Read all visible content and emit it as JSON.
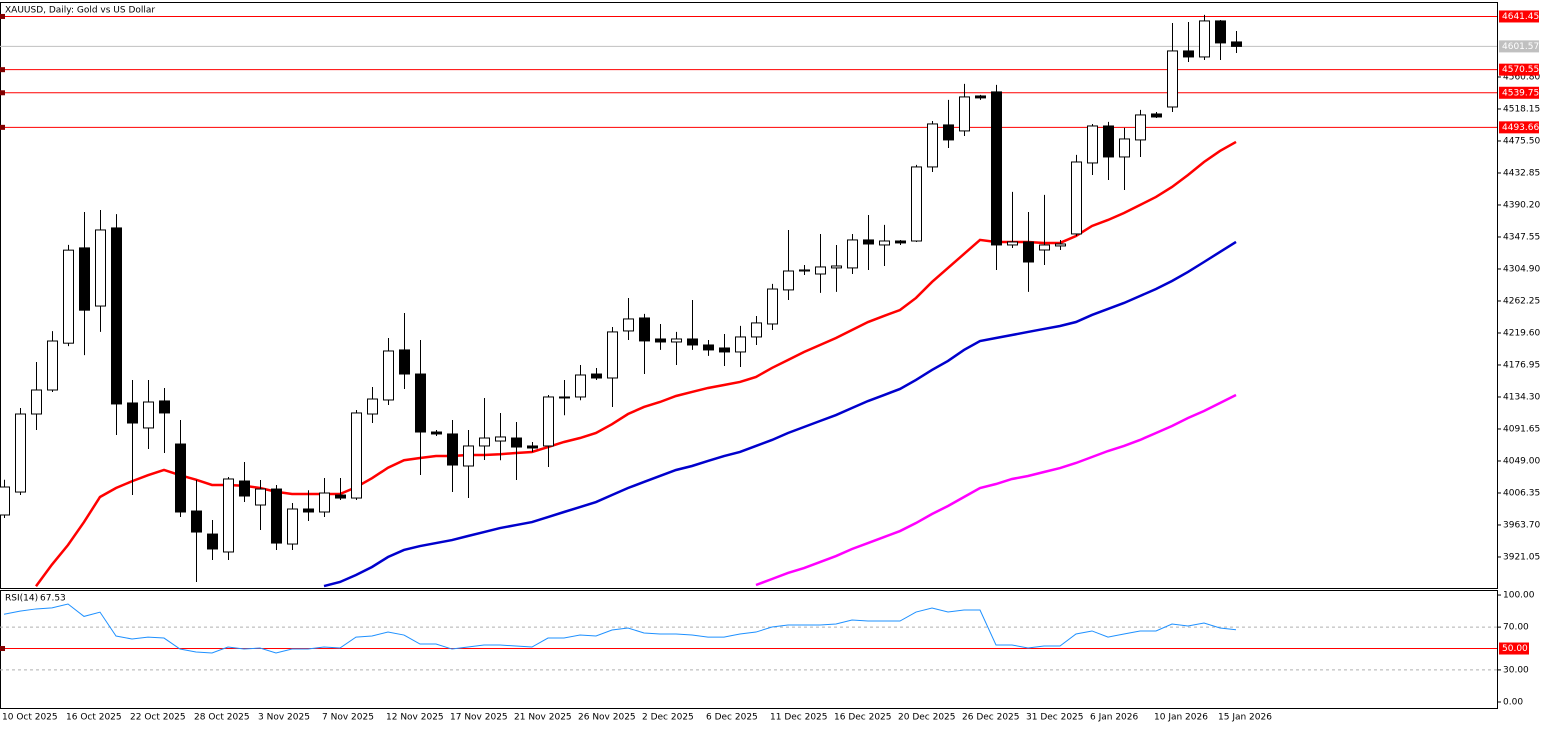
{
  "chart_data": [
    {
      "type": "candlestick",
      "title": "XAUUSD, Daily:  Gold vs US Dollar",
      "categories": [
        "10 Oct 2025",
        null,
        null,
        null,
        "16 Oct 2025",
        null,
        null,
        null,
        "22 Oct 2025",
        null,
        null,
        null,
        "28 Oct 2025",
        null,
        null,
        null,
        "3 Nov 2025",
        null,
        null,
        null,
        "7 Nov 2025",
        null,
        null,
        null,
        "12 Nov 2025",
        null,
        null,
        null,
        "17 Nov 2025",
        null,
        null,
        null,
        "21 Nov 2025",
        null,
        null,
        null,
        "26 Nov 2025",
        null,
        null,
        null,
        "2 Dec 2025",
        null,
        null,
        null,
        "6 Dec 2025",
        null,
        null,
        null,
        "11 Dec 2025",
        null,
        null,
        null,
        "16 Dec 2025",
        null,
        null,
        null,
        "20 Dec 2025",
        null,
        null,
        null,
        "26 Dec 2025",
        null,
        null,
        null,
        "31 Dec 2025",
        null,
        null,
        null,
        "6 Jan 2026",
        null,
        null,
        null,
        "10 Jan 2026",
        null,
        null,
        null,
        "15 Jan 2026",
        null
      ],
      "open": [
        3977,
        4007.6,
        4111.6,
        4143.6,
        4206,
        4333,
        4255.5,
        4359.6,
        4126.3,
        4093,
        4129,
        4071.6,
        3982.3,
        3951.6,
        3927.7,
        4022.3,
        3990.3,
        4011.6,
        3938.3,
        3985,
        3981,
        4003.6,
        3999.6,
        4111.6,
        4130.3,
        4197,
        4164.9,
        4087.6,
        4085,
        4042.3,
        4069,
        4075.6,
        4079.6,
        4069,
        4069,
        4134.3,
        4134.3,
        4164.9,
        4159.6,
        4222.3,
        4239.6,
        4211.6,
        4207.6,
        4211.6,
        4203.6,
        4199.6,
        4194.3,
        4214.3,
        4231.6,
        4277,
        4302.2,
        4298.2,
        4306.3,
        4306.3,
        4343.6,
        4336.9,
        4342.2,
        4342.2,
        4440.9,
        4496.9,
        4488.9,
        4535.5,
        4540.9,
        4336.9,
        4340.9,
        4330.2,
        4335.6,
        4351.6,
        4446.2,
        4495.5,
        4454.2,
        4476.9,
        4511.5,
        4520.8,
        4595.5,
        4587.5,
        4635.5,
        4607.5
      ],
      "high": [
        4024,
        4119.6,
        4180.9,
        4222,
        4337,
        4380.9,
        4383.5,
        4378,
        4156.9,
        4156.9,
        4146.3,
        4103.6,
        4023.6,
        3970.3,
        4027.6,
        4047.6,
        4023.6,
        4017,
        3993,
        4010,
        4026.3,
        4026.3,
        4117,
        4147.6,
        4212.9,
        4246.3,
        4210.3,
        4090.3,
        4103.6,
        4090.3,
        4133,
        4113,
        4101,
        4074.3,
        4137,
        4156.9,
        4177,
        4172.9,
        4227.6,
        4266.3,
        4245,
        4231.6,
        4221,
        4263.6,
        4210.3,
        4218.3,
        4229,
        4242.3,
        4285,
        4356.9,
        4310.2,
        4351.6,
        4336.9,
        4351.6,
        4376.9,
        4363.6,
        4343.6,
        4443.6,
        4502.2,
        4530.2,
        4551.6,
        4536.9,
        4550.2,
        4407.6,
        4380.9,
        4403.6,
        4343.6,
        4456.9,
        4498.2,
        4500.9,
        4492.9,
        4516.9,
        4514.2,
        4632.8,
        4634.1,
        4643.5,
        4636.8,
        4622.1
      ],
      "low": [
        3973,
        4003.7,
        4090.3,
        4140.9,
        4202,
        4190,
        4221,
        4083.6,
        4003.6,
        4065,
        4059.6,
        3974.3,
        3887.7,
        3917,
        3917,
        3994.3,
        3957,
        3930.3,
        3930.4,
        3969,
        3974.3,
        3997,
        3997,
        4099.6,
        4123.6,
        4145,
        4030.3,
        4082.3,
        4007.6,
        3999.6,
        4050.3,
        4050,
        4023.6,
        4061,
        4041,
        4110,
        4130,
        4156.9,
        4121,
        4210.3,
        4165,
        4197,
        4177,
        4197,
        4189,
        4175.6,
        4174.3,
        4203.6,
        4223.6,
        4263.6,
        4296.9,
        4273,
        4274.3,
        4298.2,
        4303.6,
        4308.9,
        4336.9,
        4340.9,
        4434.2,
        4466.2,
        4482.2,
        4530.2,
        4303.6,
        4332.9,
        4274.3,
        4310.2,
        4330.2,
        4348.9,
        4430.2,
        4423.5,
        4410.2,
        4454.2,
        4506.2,
        4514.2,
        4580.8,
        4583.5,
        4583.5,
        4592.8
      ],
      "close": [
        4014.3,
        4111.6,
        4143.6,
        4208.9,
        4330,
        4250,
        4356.9,
        4125,
        4099.6,
        4127.6,
        4113,
        3981,
        3954.3,
        3931.7,
        4025,
        4002.3,
        4011.6,
        3939.6,
        3985,
        3981,
        4006.3,
        3999.6,
        4113,
        4131.6,
        4195.6,
        4164.9,
        4087.6,
        4085,
        4043.6,
        4069,
        4079.6,
        4081,
        4067.6,
        4066.3,
        4134.3,
        4134.3,
        4163.6,
        4159.6,
        4221,
        4238.3,
        4209,
        4207.6,
        4211.6,
        4203.6,
        4197,
        4194.3,
        4214.3,
        4233,
        4278.2,
        4302.2,
        4303.6,
        4307.6,
        4308.9,
        4343.6,
        4338.2,
        4342.2,
        4339.6,
        4440.9,
        4498.2,
        4476.9,
        4534.2,
        4532.9,
        4336.9,
        4340.9,
        4314.2,
        4336.9,
        4338.2,
        4447.5,
        4495.5,
        4454.2,
        4478.2,
        4510.2,
        4507.5,
        4595.5,
        4587.5,
        4635.5,
        4606.2,
        4601.57
      ],
      "up_color": "#ffffff",
      "down_color": "#000000",
      "outline_color": "#000000",
      "lines": [
        {
          "color": "#ff0000",
          "values": [
            null,
            null,
            3882,
            3911,
            3937,
            3967.6,
            4001,
            4013,
            4022,
            4030,
            4037,
            4030,
            4024,
            4017,
            4017,
            4016,
            4013,
            4008,
            4005,
            4005,
            4005,
            4005,
            4014,
            4026,
            4040,
            4050,
            4053,
            4055.6,
            4055.6,
            4057,
            4057,
            4058,
            4059.6,
            4061,
            4067.6,
            4074.3,
            4079.6,
            4086.3,
            4098,
            4111.6,
            4121,
            4127.6,
            4135.6,
            4141,
            4146.3,
            4150.3,
            4154.3,
            4161,
            4173,
            4183.6,
            4194.3,
            4203.6,
            4212.9,
            4223.6,
            4234.2,
            4242.3,
            4250.2,
            4266.3,
            4287.6,
            4306.3,
            4324.9,
            4343.6,
            4340.9,
            4340.9,
            4340.9,
            4339.6,
            4339.6,
            4348.9,
            4362.2,
            4370.2,
            4379.5,
            4390.2,
            4400.9,
            4414.2,
            4430.2,
            4447.5,
            4462.2,
            4474.2
          ]
        },
        {
          "color": "#0000cc",
          "values": [
            null,
            null,
            null,
            null,
            null,
            null,
            null,
            null,
            null,
            null,
            null,
            null,
            null,
            null,
            null,
            null,
            null,
            null,
            null,
            null,
            3882.3,
            3887.7,
            3897,
            3907.7,
            3921,
            3930.4,
            3935.6,
            3939.6,
            3943.6,
            3949,
            3954.3,
            3959.6,
            3963.6,
            3967.6,
            3974.3,
            3981,
            3987.6,
            3994.3,
            4003.6,
            4013,
            4021,
            4029,
            4037,
            4042.3,
            4049,
            4055.6,
            4061,
            4069,
            4077,
            4086.3,
            4094.3,
            4102.3,
            4110.2,
            4119.6,
            4128.9,
            4136.9,
            4145,
            4157,
            4170.3,
            4182.3,
            4197,
            4208.9,
            4212.9,
            4216.9,
            4221,
            4225,
            4228.9,
            4234.2,
            4243.6,
            4251.6,
            4259.6,
            4268.9,
            4278.2,
            4288.9,
            4300.9,
            4314.2,
            4327.6,
            4340.9
          ]
        },
        {
          "color": "#ff00ff",
          "values": [
            null,
            null,
            null,
            null,
            null,
            null,
            null,
            null,
            null,
            null,
            null,
            null,
            null,
            null,
            null,
            null,
            null,
            null,
            null,
            null,
            null,
            null,
            null,
            null,
            null,
            null,
            null,
            null,
            null,
            null,
            null,
            null,
            null,
            null,
            null,
            null,
            null,
            null,
            null,
            null,
            null,
            null,
            null,
            null,
            null,
            null,
            null,
            3883.7,
            3891.7,
            3899.7,
            3906.3,
            3914.3,
            3922.3,
            3931.7,
            3939.6,
            3947.6,
            3955.6,
            3966.3,
            3978.3,
            3989,
            4001,
            4013,
            4018.3,
            4025,
            4029,
            4034.3,
            4039.6,
            4046.3,
            4054.3,
            4062.3,
            4069,
            4077,
            4086.3,
            4095.6,
            4106.3,
            4115.6,
            4126.3,
            4136.9
          ]
        }
      ],
      "ylim": [
        3879.7,
        4659.4
      ],
      "yticks": [
        {
          "value": 4560.8,
          "label": "4560.80"
        },
        4518.15,
        {
          "value": 4475.5,
          "label": "4475.50"
        },
        4432.85,
        {
          "value": 4390.2,
          "label": "4390.20"
        },
        4347.55,
        {
          "value": 4304.9,
          "label": "4304.90"
        },
        4262.25,
        {
          "value": 4219.6,
          "label": "4219.60"
        },
        4176.95,
        {
          "value": 4134.3,
          "label": "4134.30"
        },
        4091.65,
        {
          "value": 4049,
          "label": "4049.00"
        },
        4006.35,
        {
          "value": 3963.7,
          "label": "3963.70"
        },
        3921.05
      ],
      "levels": [
        4641.45,
        4570.55,
        4539.75,
        4493.66
      ],
      "level_color": "#ff0000",
      "last_price": 4601.57,
      "last_price_color": "#c0c0c0"
    },
    {
      "type": "line",
      "title": "RSI(14)",
      "color": "#1e90ff",
      "values": [
        82,
        85,
        87,
        88,
        91.6,
        80,
        84,
        61.7,
        58.9,
        60.7,
        59.8,
        49.5,
        46.7,
        45.8,
        51.4,
        49.5,
        50.5,
        45.8,
        49.5,
        49.5,
        51.4,
        50.5,
        60.7,
        61.7,
        65.4,
        62.6,
        54.2,
        54.2,
        49.5,
        51.4,
        53.3,
        53.3,
        52.3,
        51.4,
        59.8,
        59.8,
        62.6,
        61.7,
        67.3,
        69.2,
        64.5,
        63.6,
        63.6,
        62.6,
        60.7,
        60.7,
        63.6,
        65.4,
        70.1,
        72,
        72,
        72,
        72.9,
        76.6,
        75.7,
        75.7,
        75.7,
        84.1,
        87.9,
        84.1,
        86,
        86,
        53.3,
        53.3,
        50.5,
        52.3,
        52.3,
        63.6,
        66.4,
        60.7,
        63.6,
        66.4,
        66.4,
        72.9,
        71,
        73.8,
        69.2,
        67.53
      ],
      "ylim": [
        -5.6,
        104.7
      ],
      "yticks": [
        {
          "value": 100,
          "label": "100.00"
        },
        {
          "value": 70,
          "label": "70.00"
        },
        {
          "value": 30,
          "label": "30.00"
        },
        {
          "value": 0,
          "label": "0.00"
        }
      ],
      "level": {
        "value": 50,
        "label": "50.00"
      },
      "level_color": "#ff0000"
    }
  ]
}
